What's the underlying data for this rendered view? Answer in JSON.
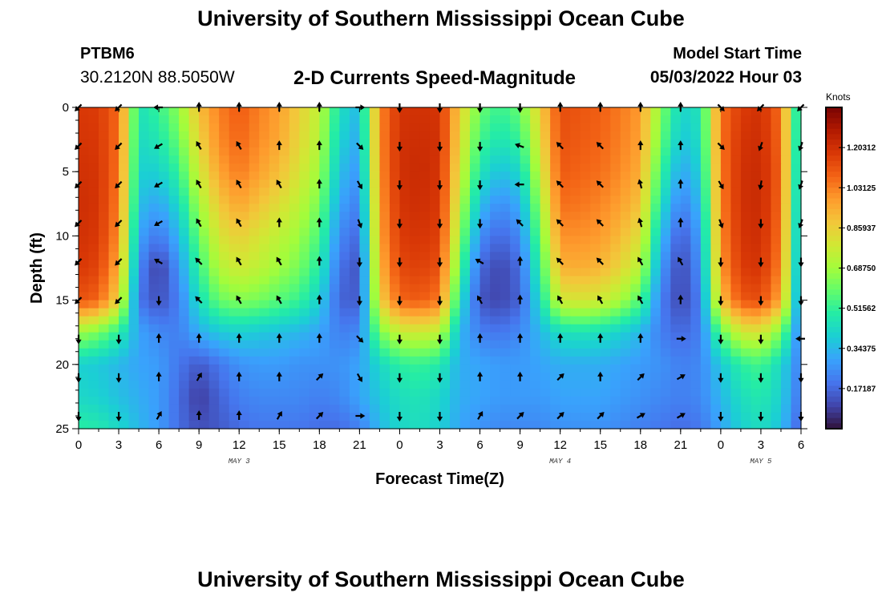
{
  "page": {
    "title": "University of Southern Mississippi Ocean Cube",
    "station_id": "PTBM6",
    "station_coords": "30.2120N  88.5050W",
    "subtitle": "2-D Currents Speed-Magnitude",
    "model_start_label": "Model Start Time",
    "model_start_value": "05/03/2022 Hour 03",
    "footer_title": "University of Southern Mississippi Ocean Cube"
  },
  "chart_data": {
    "type": "heatmap",
    "title": "2-D Currents Speed-Magnitude",
    "xlabel": "Forecast Time(Z)",
    "ylabel": "Depth (ft)",
    "x_range_hours": [
      0,
      54
    ],
    "y_range_ft": [
      0,
      25
    ],
    "y_inverted": true,
    "x_tick_hours": [
      0,
      3,
      6,
      9,
      12,
      15,
      18,
      21,
      24,
      27,
      30,
      33,
      36,
      39,
      42,
      45,
      48,
      51,
      54
    ],
    "x_tick_labels": [
      "0",
      "3",
      "6",
      "9",
      "12",
      "15",
      "18",
      "21",
      "0",
      "3",
      "6",
      "9",
      "12",
      "15",
      "18",
      "21",
      "0",
      "3",
      "6"
    ],
    "y_ticks": [
      0,
      5,
      10,
      15,
      20,
      25
    ],
    "y_tick_labels": [
      "0",
      "5",
      "10",
      "15",
      "20",
      "25"
    ],
    "day_labels": [
      {
        "text": "MAY 3",
        "hour": 12
      },
      {
        "text": "MAY 4",
        "hour": 36
      },
      {
        "text": "MAY 5",
        "hour": 51
      }
    ],
    "colorbar": {
      "unit": "Knots",
      "range": [
        0,
        1.375
      ],
      "tick_values": [
        0.17187,
        0.34375,
        0.51562,
        0.6875,
        0.85937,
        1.03125,
        1.20312
      ],
      "tick_labels": [
        "0.17187",
        "0.34375",
        "0.51562",
        "0.68750",
        "0.85937",
        "1.03125",
        "1.20312"
      ],
      "colormap": [
        "#30123b",
        "#4145ab",
        "#4675ed",
        "#39a2fc",
        "#1bcfd4",
        "#24eca6",
        "#61fc6c",
        "#a4fc3b",
        "#d1e834",
        "#f3c63a",
        "#fe9b2d",
        "#f36315",
        "#d93806",
        "#b11901",
        "#7a0403"
      ]
    },
    "speed_field": {
      "description": "current speed in knots, columns = forecast hour, rows = depth (ft)",
      "hours": [
        0,
        1.5,
        3,
        4.5,
        6,
        7.5,
        9,
        10.5,
        12,
        13.5,
        15,
        16.5,
        18,
        19.5,
        21,
        22.5,
        24,
        25.5,
        27,
        28.5,
        30,
        31.5,
        33,
        34.5,
        36,
        37.5,
        39,
        40.5,
        42,
        43.5,
        45,
        46.5,
        48,
        49.5,
        51,
        52.5,
        54
      ],
      "depths": [
        0,
        2.5,
        5,
        7.5,
        10,
        12.5,
        15,
        17.5,
        20,
        22.5,
        25
      ],
      "values": [
        [
          1.18,
          1.17,
          1.07,
          0.45,
          0.52,
          0.66,
          0.9,
          1.03,
          1.1,
          1.03,
          0.97,
          0.86,
          0.74,
          0.45,
          0.34,
          1.01,
          1.19,
          1.2,
          1.19,
          0.86,
          0.6,
          0.52,
          0.6,
          0.86,
          1.13,
          1.11,
          1.09,
          1.04,
          0.98,
          0.64,
          0.41,
          0.46,
          1.05,
          1.17,
          1.2,
          1.06,
          0.33
        ],
        [
          1.19,
          1.18,
          1.06,
          0.43,
          0.47,
          0.6,
          0.85,
          1.01,
          1.08,
          1.01,
          0.95,
          0.84,
          0.72,
          0.41,
          0.31,
          1.01,
          1.2,
          1.21,
          1.2,
          0.83,
          0.54,
          0.46,
          0.52,
          0.82,
          1.12,
          1.1,
          1.08,
          1.03,
          0.97,
          0.6,
          0.37,
          0.44,
          1.05,
          1.19,
          1.21,
          1.07,
          0.31
        ],
        [
          1.2,
          1.19,
          1.05,
          0.4,
          0.4,
          0.52,
          0.78,
          0.96,
          1.04,
          0.97,
          0.9,
          0.8,
          0.68,
          0.36,
          0.27,
          1.0,
          1.2,
          1.22,
          1.19,
          0.79,
          0.46,
          0.36,
          0.42,
          0.76,
          1.1,
          1.08,
          1.06,
          1.01,
          0.94,
          0.53,
          0.3,
          0.4,
          1.04,
          1.2,
          1.22,
          1.08,
          0.28
        ],
        [
          1.21,
          1.19,
          1.03,
          0.36,
          0.3,
          0.43,
          0.69,
          0.88,
          0.96,
          0.89,
          0.82,
          0.74,
          0.62,
          0.3,
          0.22,
          0.98,
          1.19,
          1.21,
          1.18,
          0.73,
          0.36,
          0.25,
          0.32,
          0.68,
          1.06,
          1.05,
          1.02,
          0.97,
          0.89,
          0.45,
          0.22,
          0.35,
          1.03,
          1.2,
          1.22,
          1.07,
          0.26
        ],
        [
          1.2,
          1.18,
          1.0,
          0.3,
          0.2,
          0.34,
          0.6,
          0.8,
          0.86,
          0.8,
          0.74,
          0.68,
          0.55,
          0.24,
          0.17,
          0.96,
          1.17,
          1.19,
          1.16,
          0.66,
          0.25,
          0.17,
          0.24,
          0.6,
          1.0,
          1.0,
          0.98,
          0.91,
          0.81,
          0.36,
          0.14,
          0.3,
          1.01,
          1.19,
          1.21,
          1.05,
          0.24
        ],
        [
          1.18,
          1.15,
          0.94,
          0.24,
          0.08,
          0.27,
          0.52,
          0.72,
          0.78,
          0.74,
          0.68,
          0.62,
          0.48,
          0.19,
          0.13,
          0.92,
          1.14,
          1.16,
          1.12,
          0.56,
          0.17,
          0.1,
          0.18,
          0.52,
          0.93,
          0.94,
          0.92,
          0.84,
          0.72,
          0.28,
          0.1,
          0.26,
          0.98,
          1.17,
          1.19,
          1.02,
          0.22
        ],
        [
          1.12,
          1.08,
          0.84,
          0.2,
          0.12,
          0.22,
          0.44,
          0.6,
          0.64,
          0.62,
          0.57,
          0.52,
          0.4,
          0.16,
          0.15,
          0.85,
          1.08,
          1.1,
          1.04,
          0.45,
          0.13,
          0.1,
          0.16,
          0.44,
          0.78,
          0.8,
          0.78,
          0.7,
          0.56,
          0.22,
          0.1,
          0.22,
          0.9,
          1.11,
          1.13,
          0.95,
          0.2
        ],
        [
          0.68,
          0.62,
          0.5,
          0.3,
          0.24,
          0.22,
          0.32,
          0.38,
          0.4,
          0.38,
          0.36,
          0.34,
          0.3,
          0.22,
          0.24,
          0.62,
          0.76,
          0.78,
          0.74,
          0.34,
          0.22,
          0.2,
          0.24,
          0.34,
          0.44,
          0.46,
          0.44,
          0.4,
          0.34,
          0.22,
          0.17,
          0.22,
          0.58,
          0.78,
          0.8,
          0.62,
          0.2
        ],
        [
          0.4,
          0.38,
          0.34,
          0.3,
          0.28,
          0.2,
          0.14,
          0.2,
          0.26,
          0.28,
          0.28,
          0.26,
          0.26,
          0.26,
          0.3,
          0.42,
          0.5,
          0.52,
          0.48,
          0.32,
          0.3,
          0.28,
          0.28,
          0.3,
          0.32,
          0.32,
          0.32,
          0.3,
          0.28,
          0.26,
          0.22,
          0.24,
          0.38,
          0.5,
          0.54,
          0.42,
          0.2
        ],
        [
          0.42,
          0.4,
          0.36,
          0.32,
          0.28,
          0.18,
          0.08,
          0.16,
          0.22,
          0.24,
          0.24,
          0.24,
          0.22,
          0.24,
          0.3,
          0.38,
          0.44,
          0.46,
          0.42,
          0.32,
          0.3,
          0.28,
          0.28,
          0.28,
          0.3,
          0.3,
          0.3,
          0.28,
          0.26,
          0.24,
          0.22,
          0.24,
          0.34,
          0.44,
          0.48,
          0.4,
          0.18
        ],
        [
          0.5,
          0.48,
          0.42,
          0.34,
          0.28,
          0.18,
          0.12,
          0.14,
          0.18,
          0.2,
          0.2,
          0.2,
          0.18,
          0.18,
          0.22,
          0.34,
          0.42,
          0.44,
          0.4,
          0.3,
          0.26,
          0.24,
          0.24,
          0.24,
          0.26,
          0.26,
          0.26,
          0.24,
          0.22,
          0.2,
          0.18,
          0.2,
          0.3,
          0.4,
          0.44,
          0.36,
          0.14
        ]
      ]
    },
    "vectors": {
      "description": "current direction in compass degrees (toward), columns = forecast hour, rows = depth (ft)",
      "hours": [
        0,
        3,
        6,
        9,
        12,
        15,
        18,
        21,
        24,
        27,
        30,
        33,
        36,
        39,
        42,
        45,
        48,
        51,
        54
      ],
      "depths": [
        0,
        3,
        6,
        9,
        12,
        15,
        18,
        21,
        24
      ],
      "directions": [
        [
          225,
          225,
          270,
          0,
          0,
          0,
          0,
          90,
          180,
          180,
          180,
          180,
          0,
          0,
          0,
          0,
          135,
          225,
          225
        ],
        [
          225,
          225,
          240,
          330,
          330,
          0,
          0,
          135,
          180,
          180,
          180,
          290,
          315,
          315,
          0,
          0,
          135,
          200,
          200
        ],
        [
          225,
          225,
          240,
          330,
          330,
          330,
          0,
          150,
          180,
          180,
          180,
          270,
          315,
          315,
          345,
          0,
          150,
          190,
          200
        ],
        [
          225,
          225,
          240,
          330,
          330,
          0,
          0,
          160,
          180,
          180,
          180,
          315,
          315,
          315,
          345,
          0,
          160,
          180,
          200
        ],
        [
          225,
          225,
          300,
          315,
          330,
          330,
          0,
          180,
          180,
          180,
          300,
          0,
          315,
          315,
          330,
          330,
          180,
          180,
          180
        ],
        [
          225,
          225,
          180,
          315,
          330,
          330,
          0,
          180,
          180,
          180,
          330,
          0,
          330,
          330,
          330,
          0,
          180,
          180,
          180
        ],
        [
          180,
          180,
          0,
          0,
          0,
          0,
          0,
          135,
          180,
          180,
          0,
          0,
          0,
          0,
          0,
          90,
          180,
          180,
          270
        ],
        [
          180,
          180,
          0,
          30,
          0,
          0,
          45,
          150,
          180,
          180,
          0,
          0,
          45,
          0,
          45,
          60,
          180,
          180,
          180
        ],
        [
          180,
          180,
          30,
          0,
          0,
          30,
          45,
          90,
          180,
          180,
          30,
          45,
          45,
          45,
          60,
          60,
          180,
          180,
          180
        ]
      ]
    }
  }
}
